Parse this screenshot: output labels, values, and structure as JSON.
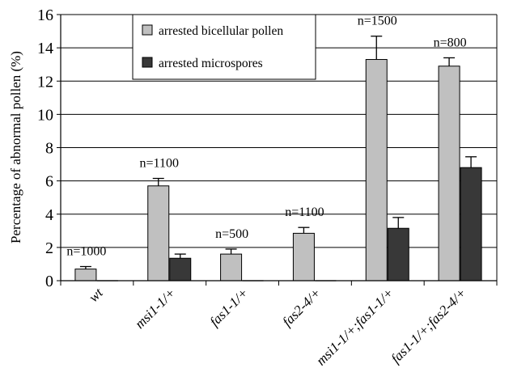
{
  "chart_data": {
    "type": "bar",
    "ylabel": "Percentage of abnormal pollen (%)",
    "xlabel": "",
    "ylim": [
      0,
      16
    ],
    "yticks": [
      0,
      2,
      4,
      6,
      8,
      10,
      12,
      14,
      16
    ],
    "grid": true,
    "legend_position": "top-left",
    "categories": [
      "wt",
      "msi1-1/+",
      "fas1-1/+",
      "fas2-4/+",
      "msi1-1/+;fas1-1/+",
      "fas1-1/+;fas2-4/+"
    ],
    "n_labels": [
      "n=1000",
      "n=1100",
      "n=500",
      "n=1100",
      "n=1500",
      "n=800"
    ],
    "series": [
      {
        "name": "arrested bicellular pollen",
        "color": "#c0c0c0",
        "values": [
          0.7,
          5.7,
          1.6,
          2.85,
          13.3,
          12.9
        ],
        "errors": [
          0.15,
          0.45,
          0.3,
          0.35,
          1.4,
          0.5
        ]
      },
      {
        "name": "arrested microspores",
        "color": "#383838",
        "values": [
          0.0,
          1.35,
          0.0,
          0.0,
          3.15,
          6.8
        ],
        "errors": [
          0.0,
          0.25,
          0.0,
          0.0,
          0.65,
          0.65
        ]
      }
    ]
  }
}
